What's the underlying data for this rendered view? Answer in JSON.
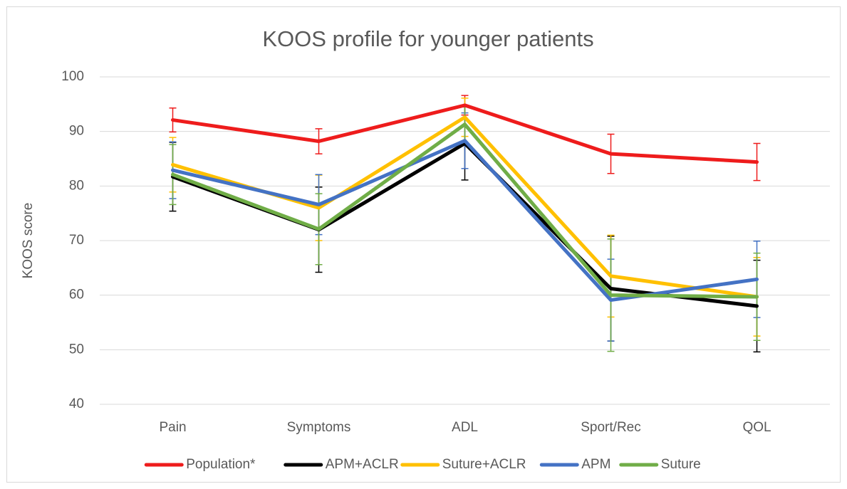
{
  "chart_data": {
    "type": "line",
    "title": "KOOS profile for younger patients",
    "y_label": "KOOS score",
    "categories": [
      "Pain",
      "Symptoms",
      "ADL",
      "Sport/Rec",
      "QOL"
    ],
    "series": [
      {
        "name": "Population*",
        "color": "#ee1c1c",
        "values": [
          92.1,
          88.2,
          94.8,
          85.9,
          84.4
        ],
        "errors": [
          2.2,
          2.3,
          1.8,
          3.6,
          3.4
        ]
      },
      {
        "name": "APM+ACLR",
        "color": "#000000",
        "values": [
          81.7,
          72.0,
          87.8,
          61.2,
          58.0
        ],
        "errors": [
          6.3,
          7.8,
          6.7,
          9.6,
          8.4
        ]
      },
      {
        "name": "Suture+ACLR",
        "color": "#ffc000",
        "values": [
          83.9,
          76.0,
          92.6,
          63.5,
          59.7
        ],
        "errors": [
          5.0,
          6.0,
          3.5,
          7.5,
          7.2
        ]
      },
      {
        "name": "APM",
        "color": "#4472c4",
        "values": [
          82.9,
          76.6,
          88.3,
          59.1,
          62.9
        ],
        "errors": [
          5.2,
          5.5,
          5.1,
          7.5,
          7.0
        ]
      },
      {
        "name": "Suture",
        "color": "#70ad47",
        "values": [
          82.1,
          72.1,
          91.3,
          60.0,
          59.7
        ],
        "errors": [
          5.5,
          6.5,
          3.5,
          10.3,
          8.0
        ]
      }
    ],
    "ylim": [
      40,
      100
    ],
    "yticks": [
      40,
      50,
      60,
      70,
      80,
      90,
      100
    ],
    "grid": true,
    "legend": "bottom"
  }
}
